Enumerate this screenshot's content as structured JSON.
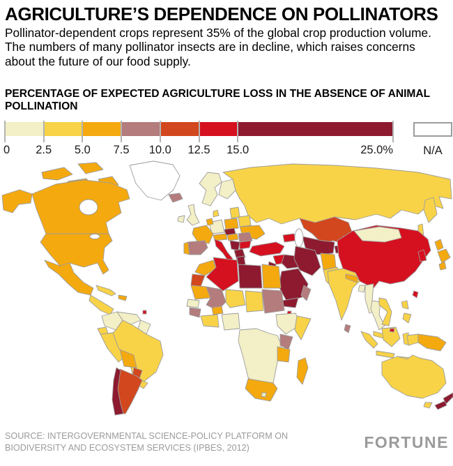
{
  "header": {
    "title": "AGRICULTURE’S DEPENDENCE ON POLLINATORS",
    "subtitle": "Pollinator-dependent crops represent 35% of the global crop production volume. The numbers of many pollinator insects are in decline, which raises concerns about the future of our food supply."
  },
  "legend": {
    "title": "PERCENTAGE OF EXPECTED AGRICULTURE LOSS IN THE ABSENCE OF ANIMAL POLLINATION",
    "na_label": "N/A",
    "na_color": "#FFFFFF",
    "ticks": [
      {
        "label": "0",
        "value": 0
      },
      {
        "label": "2.5",
        "value": 2.5
      },
      {
        "label": "5.0",
        "value": 5
      },
      {
        "label": "7.5",
        "value": 7.5
      },
      {
        "label": "10.0",
        "value": 10
      },
      {
        "label": "12.5",
        "value": 12.5
      },
      {
        "label": "15.0",
        "value": 15
      },
      {
        "label": "25.0%",
        "value": 25
      }
    ],
    "bins": [
      {
        "range": "0–2.5%",
        "color": "#F3EFC6"
      },
      {
        "range": "2.5–5.0%",
        "color": "#F8D347"
      },
      {
        "range": "5.0–7.5%",
        "color": "#F4A90F"
      },
      {
        "range": "7.5–10.0%",
        "color": "#B47C7C"
      },
      {
        "range": "10.0–12.5%",
        "color": "#D2471E"
      },
      {
        "range": "12.5–15.0%",
        "color": "#D5101F"
      },
      {
        "range": "15.0–25.0%",
        "color": "#8D1A2F"
      }
    ]
  },
  "chart_data": {
    "type": "heatmap",
    "variant": "choropleth world map",
    "title": "Percentage of expected agriculture loss in the absence of animal pollination",
    "unit": "%",
    "scale_breaks": [
      0,
      2.5,
      5,
      7.5,
      10,
      12.5,
      15,
      25
    ],
    "regions": {
      "greenland": "na",
      "canada": 2,
      "arctic-islands": 2,
      "alaska": 2,
      "usa": 2,
      "mexico": 2,
      "central-america": 1,
      "cuba": 1,
      "hispaniola": 2,
      "trinidad": 5,
      "colombia": 0,
      "venezuela": 0,
      "guyanas": 0,
      "ecuador": 1,
      "peru": 1,
      "brazil": 1,
      "bolivia": 2,
      "paraguay": 4,
      "argentina": 4,
      "chile": 6,
      "uruguay": 1,
      "iceland": 3,
      "norway-sweden": 0,
      "finland": 0,
      "ireland": 0,
      "uk": 0,
      "denmark": 1,
      "germany": 0,
      "benelux": 2,
      "france": 2,
      "portugal": 2,
      "spain": 3,
      "italy": 5,
      "switzerland-austria": 2,
      "czech-slovakia": 6,
      "poland": 2,
      "baltics": 1,
      "belarus": 1,
      "ukraine": 2,
      "hungary": 2,
      "romania": 3,
      "balkans": 6,
      "bulgaria": 5,
      "greece": 6,
      "russia": 1,
      "kazakhstan": 4,
      "uzbekistan-turkmenistan": 6,
      "tajikistan": 6,
      "kyrgyzstan": 5,
      "caucasus": 5,
      "turkey": 5,
      "syria": 5,
      "israel-jordan": 6,
      "iraq": 6,
      "iran": 6,
      "afghanistan": 2,
      "pakistan": 1,
      "saudi-arabia": 6,
      "yemen": 6,
      "oman": 3,
      "india": 1,
      "nepal": 2,
      "bangladesh": 0,
      "sri-lanka": 3,
      "myanmar": 0,
      "thailand": 0,
      "vietnam-laos": 1,
      "malaysia": 1,
      "china": 5,
      "mongolia": 0,
      "korea": 5,
      "japan": 2,
      "taiwan": 5,
      "philippines": 1,
      "indonesia": 1,
      "brunei": 5,
      "west-papua": 1,
      "papua-new-guinea": 2,
      "australia": 1,
      "new-zealand": 6,
      "morocco": 2,
      "western-sahara": 4,
      "algeria": 5,
      "tunisia": 6,
      "libya": 6,
      "egypt": 2,
      "mauritania": 2,
      "senegal": 0,
      "guinea": 3,
      "mali": 3,
      "burkina-faso": 2,
      "ivory-coast-ghana": 1,
      "niger": 1,
      "nigeria": 0,
      "chad": 1,
      "sudan": 3,
      "djibouti": 5,
      "ethiopia": 0,
      "somalia": 1,
      "kenya": 3,
      "tanzania": 2,
      "central-africa": 0,
      "south-africa": 2,
      "lesotho": 0,
      "madagascar": 2
    }
  },
  "footer": {
    "source": "SOURCE: INTERGOVERNMENTAL SCIENCE-POLICY PLATFORM ON BIODIVERSITY AND ECOSYSTEM SERVICES (IPBES, 2012)",
    "brand": "FORTUNE"
  }
}
